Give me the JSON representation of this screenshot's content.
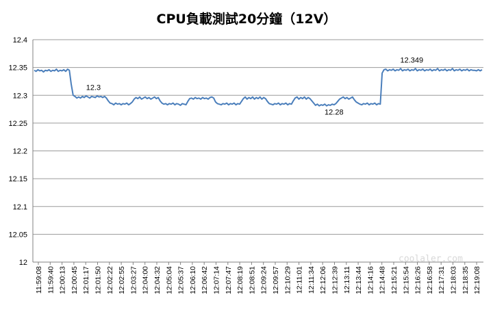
{
  "chart_data": {
    "type": "line",
    "title": "CPU負載測試20分鐘（12V）",
    "xlabel": "",
    "ylabel": "",
    "ylim": [
      12,
      12.4
    ],
    "y_ticks": [
      "12.4",
      "12.35",
      "12.3",
      "12.25",
      "12.2",
      "12.15",
      "12.1",
      "12.05",
      "12"
    ],
    "grid": true,
    "legend": "none",
    "line_color": "#4a7ebb",
    "x_tick_labels": [
      "11:59:08",
      "11:59:40",
      "12:00:13",
      "12:00:45",
      "12:01:17",
      "12:01:50",
      "12:02:22",
      "12:02:55",
      "12:03:27",
      "12:04:00",
      "12:04:32",
      "12:05:04",
      "12:05:37",
      "12:06:10",
      "12:06:42",
      "12:07:14",
      "12:07:47",
      "12:08:19",
      "12:08:51",
      "12:09:24",
      "12:09:57",
      "12:10:29",
      "12:11:01",
      "12:11:34",
      "12:12:06",
      "12:12:39",
      "12:13:11",
      "12:13:44",
      "12:14:16",
      "12:14:48",
      "12:15:21",
      "12:15:54",
      "12:16:26",
      "12:16:58",
      "12:17:31",
      "12:18:03",
      "12:18:35",
      "12:19:08"
    ],
    "series": [
      {
        "values": [
          12.345,
          12.343,
          12.346,
          12.344,
          12.345,
          12.342,
          12.345,
          12.344,
          12.346,
          12.343,
          12.345,
          12.344,
          12.347,
          12.343,
          12.345,
          12.344,
          12.346,
          12.343,
          12.347,
          12.345,
          12.32,
          12.3,
          12.298,
          12.295,
          12.297,
          12.295,
          12.298,
          12.296,
          12.299,
          12.297,
          12.295,
          12.298,
          12.297,
          12.296,
          12.299,
          12.297,
          12.298,
          12.296,
          12.298,
          12.295,
          12.29,
          12.286,
          12.285,
          12.283,
          12.286,
          12.284,
          12.285,
          12.283,
          12.285,
          12.284,
          12.286,
          12.283,
          12.285,
          12.288,
          12.293,
          12.296,
          12.294,
          12.297,
          12.293,
          12.295,
          12.297,
          12.294,
          12.296,
          12.293,
          12.295,
          12.297,
          12.294,
          12.296,
          12.29,
          12.286,
          12.284,
          12.285,
          12.283,
          12.285,
          12.284,
          12.286,
          12.283,
          12.285,
          12.284,
          12.282,
          12.285,
          12.284,
          12.283,
          12.289,
          12.294,
          12.295,
          12.293,
          12.296,
          12.294,
          12.295,
          12.293,
          12.296,
          12.294,
          12.295,
          12.293,
          12.296,
          12.297,
          12.295,
          12.288,
          12.285,
          12.284,
          12.283,
          12.285,
          12.284,
          12.286,
          12.283,
          12.285,
          12.284,
          12.286,
          12.283,
          12.285,
          12.284,
          12.289,
          12.294,
          12.297,
          12.293,
          12.296,
          12.294,
          12.297,
          12.293,
          12.296,
          12.294,
          12.297,
          12.293,
          12.296,
          12.294,
          12.289,
          12.285,
          12.284,
          12.283,
          12.285,
          12.284,
          12.286,
          12.283,
          12.285,
          12.284,
          12.286,
          12.283,
          12.285,
          12.284,
          12.29,
          12.295,
          12.297,
          12.293,
          12.296,
          12.294,
          12.297,
          12.293,
          12.296,
          12.294,
          12.29,
          12.286,
          12.282,
          12.284,
          12.281,
          12.283,
          12.282,
          12.284,
          12.281,
          12.283,
          12.282,
          12.284,
          12.283,
          12.285,
          12.289,
          12.293,
          12.295,
          12.297,
          12.294,
          12.296,
          12.293,
          12.295,
          12.297,
          12.292,
          12.288,
          12.286,
          12.284,
          12.283,
          12.285,
          12.284,
          12.286,
          12.283,
          12.285,
          12.284,
          12.286,
          12.283,
          12.285,
          12.284,
          12.34,
          12.346,
          12.347,
          12.344,
          12.346,
          12.345,
          12.347,
          12.344,
          12.346,
          12.345,
          12.348,
          12.344,
          12.346,
          12.345,
          12.347,
          12.344,
          12.346,
          12.345,
          12.348,
          12.344,
          12.346,
          12.345,
          12.347,
          12.344,
          12.346,
          12.345,
          12.347,
          12.344,
          12.346,
          12.345,
          12.348,
          12.344,
          12.346,
          12.345,
          12.347,
          12.344,
          12.346,
          12.345,
          12.348,
          12.344,
          12.346,
          12.345,
          12.347,
          12.344,
          12.346,
          12.345,
          12.347,
          12.344,
          12.346,
          12.345,
          12.345,
          12.344,
          12.346,
          12.344,
          12.346
        ]
      }
    ],
    "annotations": [
      {
        "text": "12.3",
        "x_index": 32,
        "y": 12.3
      },
      {
        "text": "12.28",
        "x_index": 162,
        "y": 12.28
      },
      {
        "text": "12.349",
        "x_index": 204,
        "y": 12.349
      }
    ]
  },
  "watermark": {
    "text": "coolaler.com"
  }
}
